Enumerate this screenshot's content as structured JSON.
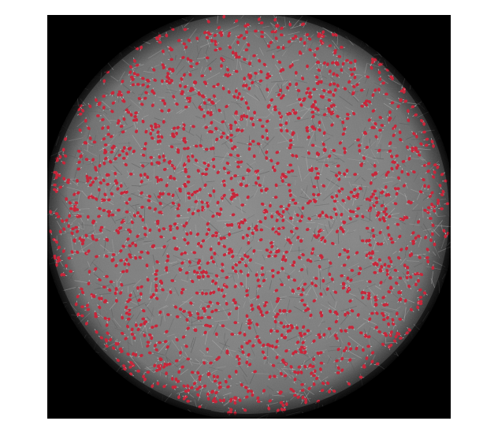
{
  "figure": {
    "kind": "phase-contrast microscopy field with detected-cell overlay",
    "background_color": "#ffffff",
    "frame_color": "#000000",
    "field_tone": "#7d7d7d",
    "vignette_color": "#000000",
    "marker_color": "#c8263a",
    "marker_highlight_color": "#e0e0e0",
    "marker_shape": "teardrop-dot"
  }
}
